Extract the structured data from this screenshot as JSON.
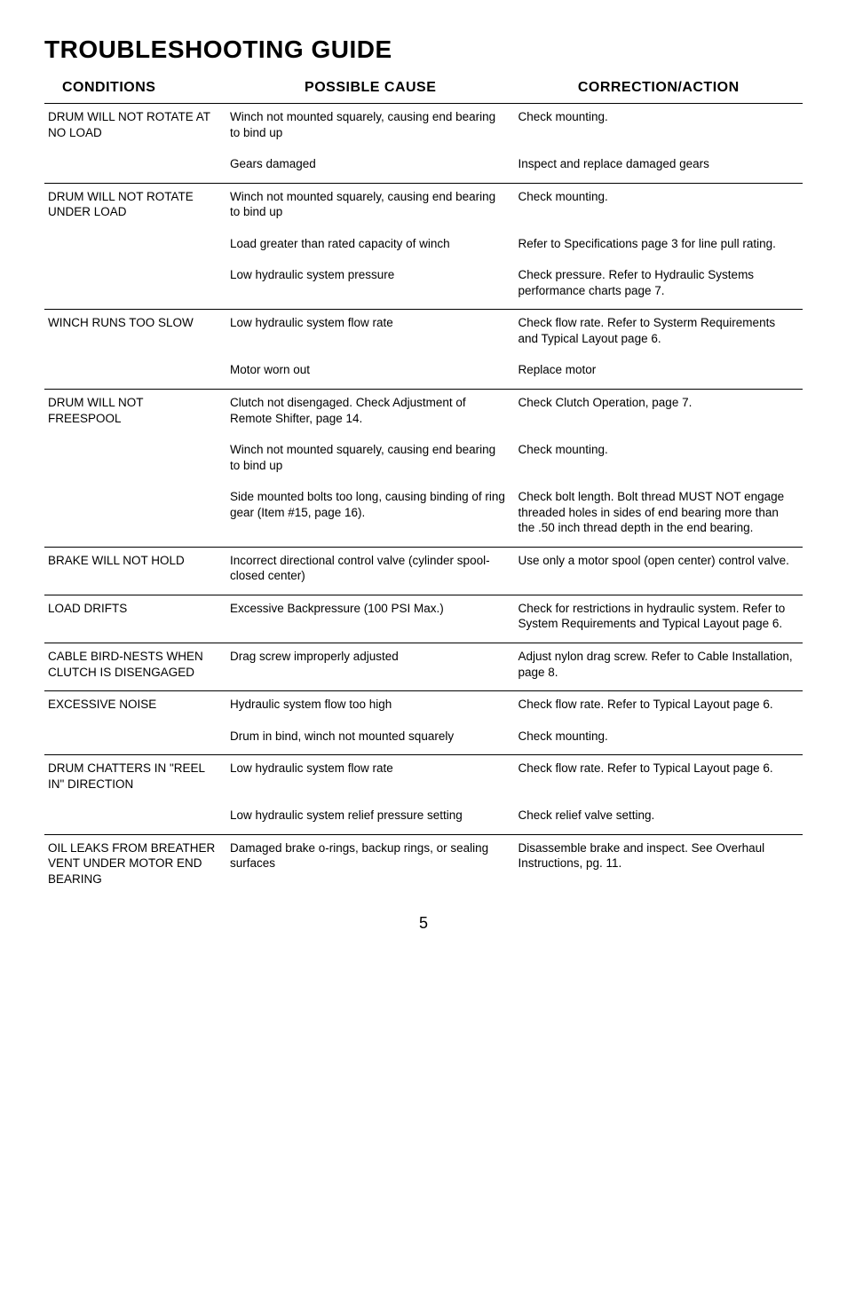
{
  "title": "TROUBLESHOOTING GUIDE",
  "headers": {
    "conditions": "CONDITIONS",
    "cause": "POSSIBLE CAUSE",
    "correction": "CORRECTION/ACTION"
  },
  "rows": [
    {
      "section": true,
      "condition": "DRUM WILL NOT ROTATE AT NO LOAD",
      "cause": "Winch not mounted squarely, causing end bearing to bind up",
      "correction": "Check mounting."
    },
    {
      "section": false,
      "condition": "",
      "cause": "Gears damaged",
      "correction": "Inspect and replace damaged gears"
    },
    {
      "section": true,
      "condition": "DRUM WILL NOT ROTATE UNDER LOAD",
      "cause": "Winch not mounted squarely, causing end bearing to bind up",
      "correction": "Check mounting."
    },
    {
      "section": false,
      "condition": "",
      "cause": "Load greater than rated capacity of winch",
      "correction": "Refer to Specifications page 3 for line pull rating."
    },
    {
      "section": false,
      "condition": "",
      "cause": "Low hydraulic system pressure",
      "correction": "Check pressure. Refer to Hydraulic Systems performance charts page 7."
    },
    {
      "section": true,
      "condition": "WINCH RUNS TOO SLOW",
      "cause": "Low hydraulic system flow rate",
      "correction": "Check flow rate. Refer to Systerm Requirements and Typical Layout page 6."
    },
    {
      "section": false,
      "condition": "",
      "cause": "Motor worn out",
      "correction": "Replace motor"
    },
    {
      "section": true,
      "condition": "DRUM WILL NOT FREESPOOL",
      "cause": "Clutch not disengaged. Check Adjustment of Remote Shifter, page 14.",
      "correction": "Check Clutch Operation, page 7."
    },
    {
      "section": false,
      "condition": "",
      "cause": "Winch not mounted squarely, causing end bearing to bind up",
      "correction": "Check mounting."
    },
    {
      "section": false,
      "condition": "",
      "cause": "Side mounted bolts too long, causing binding of ring gear (Item #15, page 16).",
      "correction": "Check bolt length. Bolt thread MUST NOT engage threaded holes in sides of end bearing more than the .50 inch thread depth in the end bearing."
    },
    {
      "section": true,
      "condition": "BRAKE WILL NOT HOLD",
      "cause": "Incorrect directional control valve (cylinder spool-closed center)",
      "correction": "Use only a motor spool (open center) control valve."
    },
    {
      "section": true,
      "condition": "LOAD DRIFTS",
      "cause": "Excessive Backpressure (100 PSI Max.)",
      "correction": "Check for restrictions in hydraulic system. Refer to System Requirements and Typical Layout page 6."
    },
    {
      "section": true,
      "condition": "CABLE BIRD-NESTS WHEN CLUTCH IS DISENGAGED",
      "cause": "Drag screw improperly adjusted",
      "correction": "Adjust nylon drag screw. Refer to Cable Installation, page 8."
    },
    {
      "section": true,
      "condition": "EXCESSIVE NOISE",
      "cause": "Hydraulic system flow too high",
      "correction": "Check flow rate. Refer to Typical Layout page 6."
    },
    {
      "section": false,
      "condition": "",
      "cause": "Drum in bind, winch not mounted squarely",
      "correction": "Check mounting."
    },
    {
      "section": true,
      "condition": "DRUM CHATTERS IN \"REEL IN\" DIRECTION",
      "cause": "Low hydraulic system flow rate",
      "correction": "Check flow rate. Refer to Typical Layout page 6."
    },
    {
      "section": false,
      "condition": "",
      "cause": "Low hydraulic system relief pressure setting",
      "correction": "Check relief valve setting."
    },
    {
      "section": true,
      "condition": "OIL LEAKS FROM BREATHER VENT UNDER MOTOR END BEARING",
      "cause": "Damaged brake o-rings, backup rings, or sealing surfaces",
      "correction": "Disassemble brake and inspect. See Overhaul Instructions, pg. 11."
    }
  ],
  "page_number": "5"
}
